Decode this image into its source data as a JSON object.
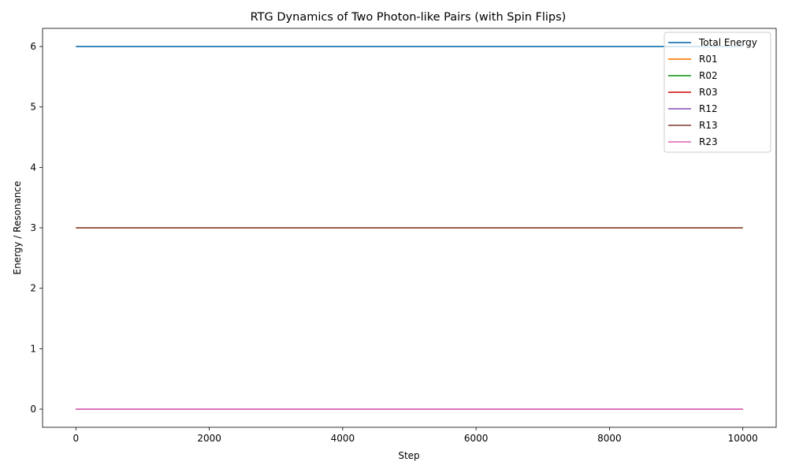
{
  "chart_data": {
    "type": "line",
    "title": "RTG Dynamics of Two Photon-like Pairs (with Spin Flips)",
    "xlabel": "Step",
    "ylabel": "Energy / Resonance",
    "xlim": [
      -500,
      10500
    ],
    "ylim": [
      -0.3,
      6.3
    ],
    "xticks": [
      0,
      2000,
      4000,
      6000,
      8000,
      10000
    ],
    "yticks": [
      0,
      1,
      2,
      3,
      4,
      5,
      6
    ],
    "grid": false,
    "legend_position": "top-right",
    "series": [
      {
        "name": "Total Energy",
        "color": "#1f77b4",
        "x": [
          0,
          10000
        ],
        "y": [
          6,
          6
        ]
      },
      {
        "name": "R01",
        "color": "#ff7f0e",
        "x": [
          0,
          10000
        ],
        "y": [
          3,
          3
        ]
      },
      {
        "name": "R02",
        "color": "#2ca02c",
        "x": [
          0,
          10000
        ],
        "y": [
          0,
          0
        ]
      },
      {
        "name": "R03",
        "color": "#d62728",
        "x": [
          0,
          10000
        ],
        "y": [
          0,
          0
        ]
      },
      {
        "name": "R12",
        "color": "#9467bd",
        "x": [
          0,
          10000
        ],
        "y": [
          0,
          0
        ]
      },
      {
        "name": "R13",
        "color": "#8c564b",
        "x": [
          0,
          10000
        ],
        "y": [
          3,
          3
        ]
      },
      {
        "name": "R23",
        "color": "#e377c2",
        "x": [
          0,
          10000
        ],
        "y": [
          0,
          0
        ]
      }
    ]
  }
}
